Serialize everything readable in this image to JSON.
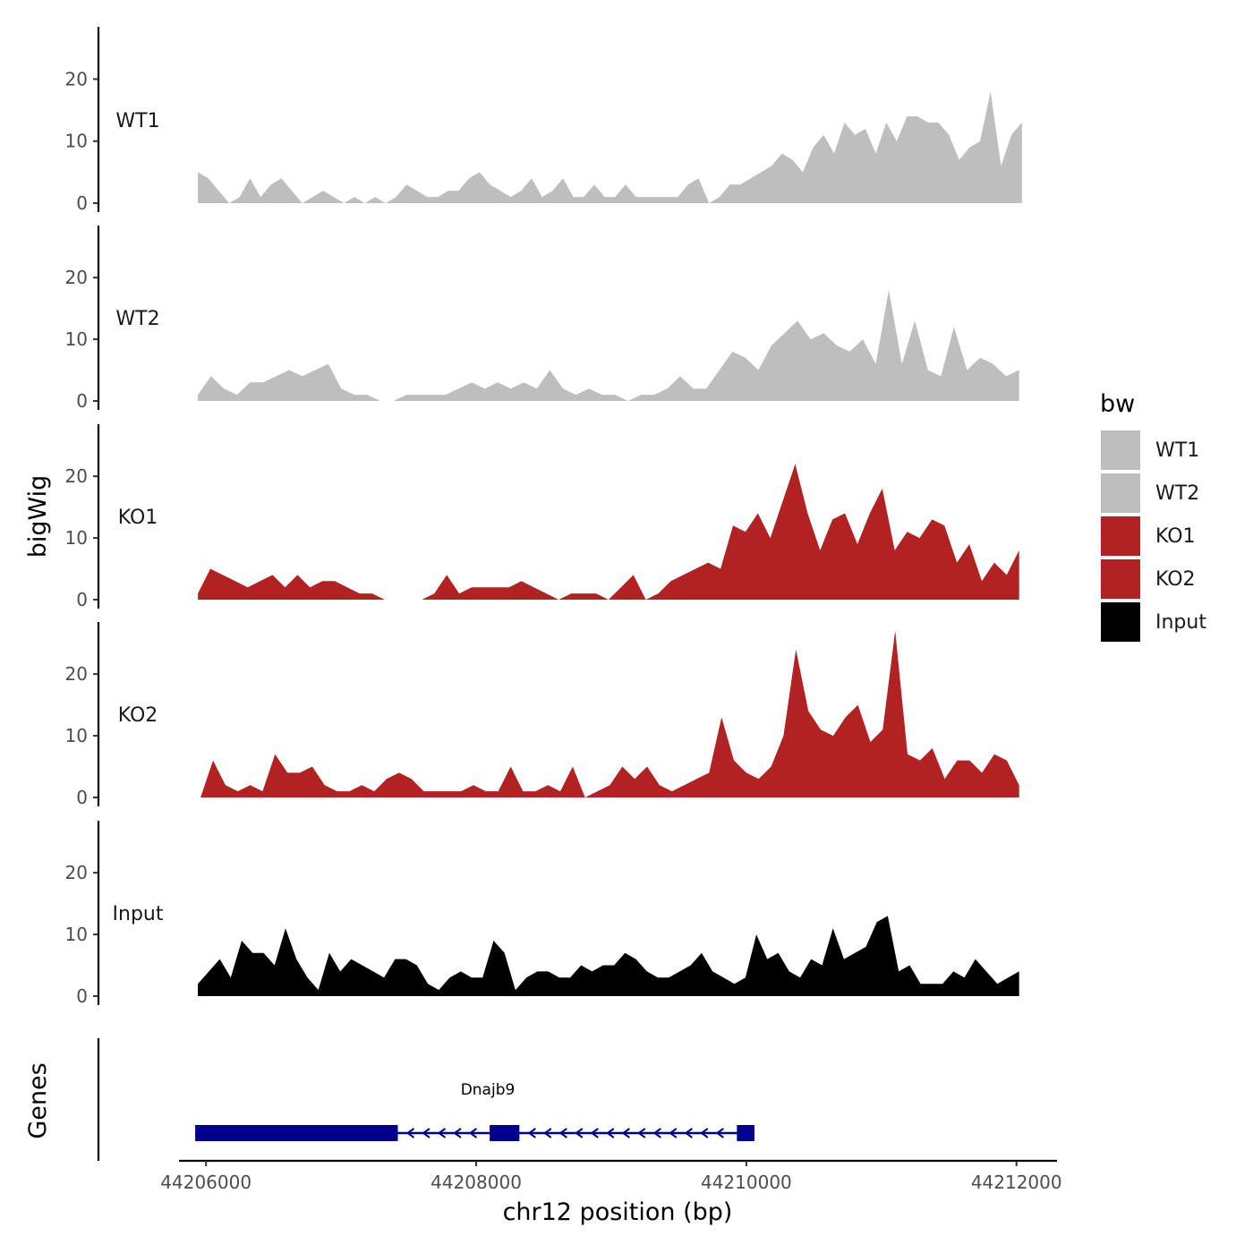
{
  "chart_data": {
    "type": "area",
    "xlabel": "chr12 position (bp)",
    "ylabel": "bigWig",
    "genes_panel_label": "Genes",
    "xlim": [
      44205800,
      44212300
    ],
    "ylim": [
      0,
      28
    ],
    "x_ticks": [
      44206000,
      44208000,
      44210000,
      44212000
    ],
    "x_tick_labels": [
      "44206000",
      "44208000",
      "44210000",
      "44212000"
    ],
    "y_ticks": [
      0,
      10,
      20
    ],
    "y_tick_labels": [
      "0",
      "10",
      "20"
    ],
    "legend": {
      "title": "bw",
      "entries": [
        {
          "label": "WT1",
          "color": "#bebebe"
        },
        {
          "label": "WT2",
          "color": "#bebebe"
        },
        {
          "label": "KO1",
          "color": "#b22222"
        },
        {
          "label": "KO2",
          "color": "#b22222"
        },
        {
          "label": "Input",
          "color": "#000000"
        }
      ]
    },
    "series": [
      {
        "name": "WT1",
        "color": "#bebebe",
        "x_start": 44205940,
        "x_end": 44212040,
        "values": [
          5,
          4,
          2,
          0,
          1,
          4,
          1,
          3,
          4,
          2,
          0,
          1,
          2,
          1,
          0,
          1,
          0,
          1,
          0,
          1,
          3,
          2,
          1,
          1,
          2,
          2,
          4,
          5,
          3,
          2,
          1,
          2,
          4,
          1,
          2,
          4,
          1,
          1,
          3,
          1,
          1,
          3,
          1,
          1,
          1,
          1,
          1,
          3,
          4,
          0,
          1,
          3,
          3,
          4,
          5,
          6,
          8,
          7,
          5,
          9,
          11,
          8,
          13,
          11,
          12,
          8,
          13,
          10,
          14,
          14,
          13,
          13,
          11,
          7,
          9,
          10,
          18,
          6,
          11,
          13
        ]
      },
      {
        "name": "WT2",
        "color": "#bebebe",
        "x_start": 44205940,
        "x_end": 44212020,
        "values": [
          1,
          4,
          2,
          1,
          3,
          3,
          4,
          5,
          4,
          5,
          6,
          2,
          1,
          1,
          0,
          0,
          1,
          1,
          1,
          1,
          2,
          3,
          2,
          3,
          2,
          3,
          2,
          5,
          2,
          1,
          2,
          1,
          1,
          0,
          1,
          1,
          2,
          4,
          2,
          2,
          5,
          8,
          7,
          5,
          9,
          11,
          13,
          10,
          11,
          9,
          8,
          10,
          6,
          18,
          6,
          13,
          5,
          4,
          12,
          5,
          7,
          6,
          4,
          5
        ]
      },
      {
        "name": "KO1",
        "color": "#b22222",
        "x_start": 44205940,
        "x_end": 44212020,
        "values": [
          1,
          5,
          4,
          3,
          2,
          3,
          4,
          2,
          4,
          2,
          3,
          3,
          2,
          1,
          1,
          0,
          0,
          0,
          0,
          1,
          4,
          1,
          2,
          2,
          2,
          2,
          3,
          2,
          1,
          0,
          1,
          1,
          1,
          0,
          2,
          4,
          0,
          1,
          3,
          4,
          5,
          6,
          5,
          12,
          11,
          14,
          10,
          16,
          22,
          14,
          8,
          13,
          14,
          9,
          14,
          18,
          8,
          11,
          10,
          13,
          12,
          6,
          9,
          3,
          6,
          4,
          8
        ]
      },
      {
        "name": "KO2",
        "color": "#b22222",
        "x_start": 44205960,
        "x_end": 44212020,
        "values": [
          0,
          6,
          2,
          1,
          2,
          1,
          7,
          4,
          4,
          5,
          2,
          1,
          1,
          2,
          1,
          3,
          4,
          3,
          1,
          1,
          1,
          1,
          2,
          1,
          1,
          5,
          1,
          1,
          2,
          1,
          5,
          0,
          1,
          2,
          5,
          3,
          5,
          2,
          1,
          2,
          3,
          4,
          13,
          6,
          4,
          3,
          5,
          10,
          24,
          14,
          11,
          10,
          13,
          15,
          9,
          11,
          27,
          7,
          6,
          8,
          3,
          6,
          6,
          4,
          7,
          6,
          2
        ]
      },
      {
        "name": "Input",
        "color": "#000000",
        "x_start": 44205940,
        "x_end": 44212020,
        "values": [
          2,
          4,
          6,
          3,
          9,
          7,
          7,
          5,
          11,
          6,
          3,
          1,
          7,
          4,
          6,
          5,
          4,
          3,
          6,
          6,
          5,
          2,
          1,
          3,
          4,
          3,
          3,
          9,
          7,
          1,
          3,
          4,
          4,
          3,
          3,
          5,
          4,
          5,
          5,
          7,
          6,
          4,
          3,
          3,
          4,
          5,
          7,
          4,
          3,
          2,
          3,
          10,
          6,
          7,
          4,
          3,
          6,
          5,
          11,
          6,
          7,
          8,
          12,
          13,
          4,
          5,
          2,
          2,
          2,
          4,
          3,
          6,
          4,
          2,
          3,
          4
        ]
      }
    ],
    "genes": [
      {
        "name": "Dnajb9",
        "strand": "-",
        "start": 44205920,
        "end": 44210060,
        "color": "#00008b",
        "exons": [
          {
            "start": 44205920,
            "end": 44207420
          },
          {
            "start": 44208100,
            "end": 44208320
          },
          {
            "start": 44209930,
            "end": 44210060
          }
        ]
      }
    ]
  }
}
